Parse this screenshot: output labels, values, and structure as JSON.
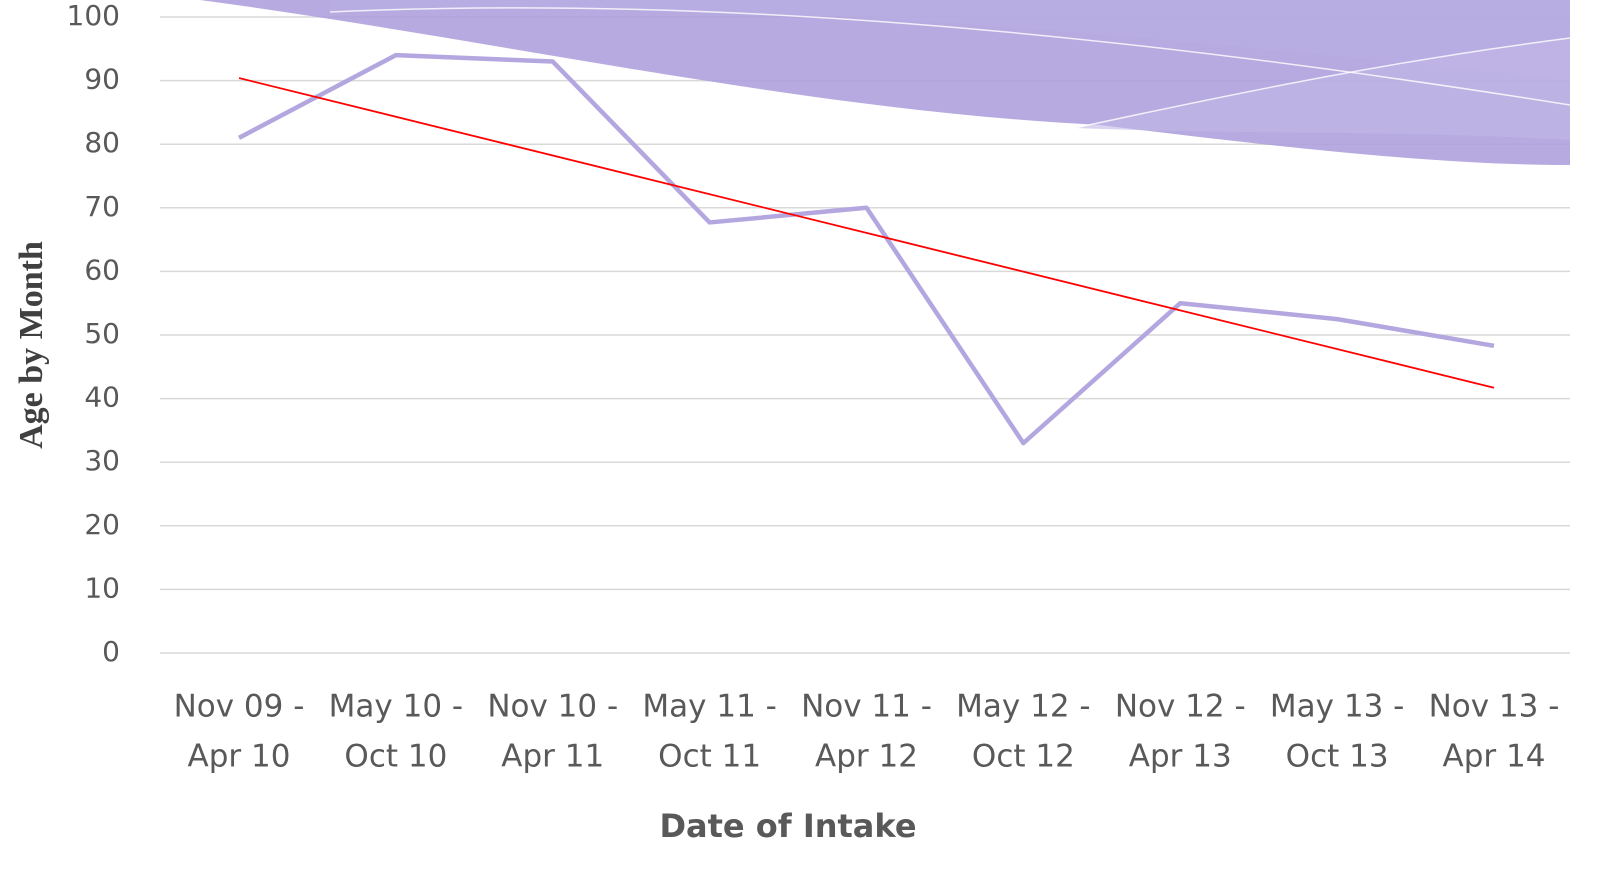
{
  "chart_data": {
    "type": "line",
    "y_label": "Age by Month",
    "x_label": "Date of Intake",
    "categories": [
      [
        "Nov 09 -",
        "Apr 10"
      ],
      [
        "May 10 -",
        "Oct 10"
      ],
      [
        "Nov 10 -",
        "Apr 11"
      ],
      [
        "May 11 -",
        "Oct 11"
      ],
      [
        "Nov 11 -",
        "Apr 12"
      ],
      [
        "May 12 -",
        "Oct 12"
      ],
      [
        "Nov 12 -",
        "Apr 13"
      ],
      [
        "May 13 -",
        "Oct 13"
      ],
      [
        "Nov 13 -",
        "Apr 14"
      ]
    ],
    "values": [
      81,
      94,
      93,
      67.7,
      70,
      33,
      55,
      52.5,
      48.3
    ],
    "color": "#b4a7e0",
    "trendline": {
      "color": "#ff0000",
      "values": [
        90.4,
        41.7
      ]
    },
    "ylim": [
      0,
      100
    ],
    "yticks": [
      0,
      10,
      20,
      30,
      40,
      50,
      60,
      70,
      80,
      90,
      100
    ],
    "grid": true
  }
}
